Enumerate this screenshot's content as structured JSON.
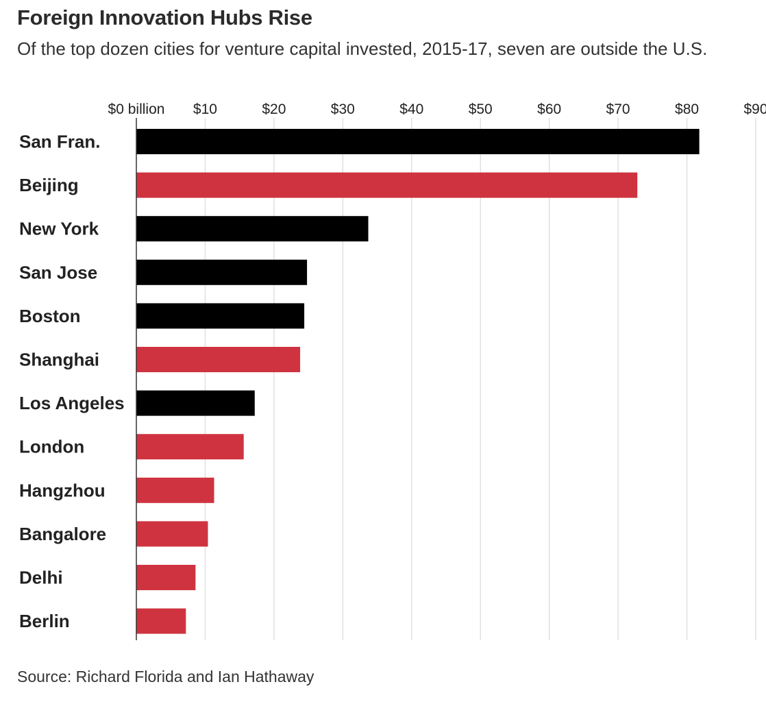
{
  "title": "Foreign Innovation Hubs Rise",
  "subtitle": "Of the top dozen cities for venture capital invested, 2015-17, seven are outside the U.S.",
  "source": "Source: Richard Florida and Ian Hathaway",
  "colors": {
    "us": "#000000",
    "foreign": "#cf3340",
    "gridline": "#dcdcdc",
    "axis": "#333333"
  },
  "chart_data": {
    "type": "bar",
    "orientation": "horizontal",
    "title": "Foreign Innovation Hubs Rise",
    "xlabel": "",
    "ylabel": "",
    "xlim": [
      0,
      90
    ],
    "grid": true,
    "xticks": [
      0,
      10,
      20,
      30,
      40,
      50,
      60,
      70,
      80,
      90
    ],
    "xtick_labels": [
      "$0 billion",
      "$10",
      "$20",
      "$30",
      "$40",
      "$50",
      "$60",
      "$70",
      "$80",
      "$90"
    ],
    "categories": [
      "San Fran.",
      "Beijing",
      "New York",
      "San Jose",
      "Boston",
      "Shanghai",
      "Los Angeles",
      "London",
      "Hangzhou",
      "Bangalore",
      "Delhi",
      "Berlin"
    ],
    "values": [
      81.8,
      72.8,
      33.7,
      24.8,
      24.4,
      23.8,
      17.2,
      15.6,
      11.3,
      10.4,
      8.6,
      7.2
    ],
    "bar_groups": [
      "us",
      "foreign",
      "us",
      "us",
      "us",
      "foreign",
      "us",
      "foreign",
      "foreign",
      "foreign",
      "foreign",
      "foreign"
    ]
  }
}
